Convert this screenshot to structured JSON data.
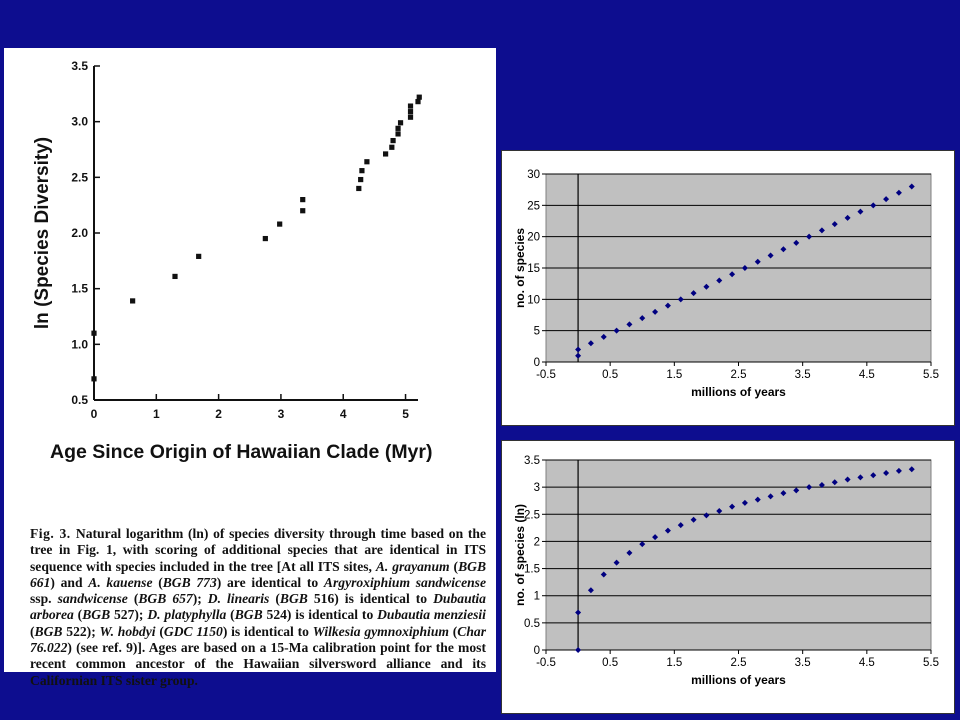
{
  "caption": {
    "fig_label": "Fig. 3.",
    "segments": [
      {
        "t": "Natural logarithm (ln) of species diversity through time based on the tree in Fig. 1, with scoring of additional species that are identical in ITS sequence with species included in the tree [At all ITS sites, ",
        "i": false
      },
      {
        "t": "A. grayanum",
        "i": true
      },
      {
        "t": " (",
        "i": false
      },
      {
        "t": "BGB 661",
        "i": true
      },
      {
        "t": ") and ",
        "i": false
      },
      {
        "t": "A. kauense",
        "i": true
      },
      {
        "t": " (",
        "i": false
      },
      {
        "t": "BGB 773",
        "i": true
      },
      {
        "t": ") are identical to ",
        "i": false
      },
      {
        "t": "Argyroxiphium sandwicense",
        "i": true
      },
      {
        "t": " ssp. ",
        "i": false
      },
      {
        "t": "sandwicense",
        "i": true
      },
      {
        "t": " (",
        "i": false
      },
      {
        "t": "BGB 657",
        "i": true
      },
      {
        "t": "); ",
        "i": false
      },
      {
        "t": "D. linearis",
        "i": true
      },
      {
        "t": " (",
        "i": false
      },
      {
        "t": "BGB",
        "i": true
      },
      {
        "t": " 516) is identical to ",
        "i": false
      },
      {
        "t": "Dubautia arborea",
        "i": true
      },
      {
        "t": " (",
        "i": false
      },
      {
        "t": "BGB",
        "i": true
      },
      {
        "t": " 527); ",
        "i": false
      },
      {
        "t": "D. platyphylla",
        "i": true
      },
      {
        "t": " (",
        "i": false
      },
      {
        "t": "BGB",
        "i": true
      },
      {
        "t": " 524) is identical to ",
        "i": false
      },
      {
        "t": "Dubautia menziesii",
        "i": true
      },
      {
        "t": " (",
        "i": false
      },
      {
        "t": "BGB",
        "i": true
      },
      {
        "t": " 522); ",
        "i": false
      },
      {
        "t": "W. hobdyi",
        "i": true
      },
      {
        "t": " (",
        "i": false
      },
      {
        "t": "GDC 1150",
        "i": true
      },
      {
        "t": ") is identical to ",
        "i": false
      },
      {
        "t": "Wilkesia gymnoxiphium",
        "i": true
      },
      {
        "t": " (",
        "i": false
      },
      {
        "t": "Char 76.022",
        "i": true
      },
      {
        "t": ") (see ref. 9)]. Ages are based on a 15-Ma calibration point for the most recent common ancestor of the Hawaiian silversword alliance and its Californian ITS sister group.",
        "i": false
      }
    ]
  },
  "chart_data": [
    {
      "type": "scatter",
      "title": "",
      "xlabel": "Age Since Origin of Hawaiian Clade (Myr)",
      "ylabel": "ln (Species Diversity)",
      "xlim": [
        0,
        5.2
      ],
      "ylim": [
        0.5,
        3.5
      ],
      "xticks": [
        "0",
        "1",
        "2",
        "3",
        "4",
        "5"
      ],
      "yticks": [
        "0.5",
        "1.0",
        "1.5",
        "2.0",
        "2.5",
        "3.0",
        "3.5"
      ],
      "grid": false,
      "marker_color": "#111111",
      "points": [
        [
          0.0,
          0.69
        ],
        [
          0.0,
          1.1
        ],
        [
          0.62,
          1.39
        ],
        [
          1.3,
          1.61
        ],
        [
          1.68,
          1.79
        ],
        [
          2.75,
          1.95
        ],
        [
          2.98,
          2.08
        ],
        [
          3.35,
          2.2
        ],
        [
          3.35,
          2.3
        ],
        [
          4.25,
          2.4
        ],
        [
          4.28,
          2.48
        ],
        [
          4.3,
          2.56
        ],
        [
          4.38,
          2.64
        ],
        [
          4.68,
          2.71
        ],
        [
          4.78,
          2.77
        ],
        [
          4.8,
          2.83
        ],
        [
          4.88,
          2.89
        ],
        [
          4.88,
          2.94
        ],
        [
          4.92,
          2.99
        ],
        [
          5.08,
          3.04
        ],
        [
          5.08,
          3.09
        ],
        [
          5.08,
          3.14
        ],
        [
          5.2,
          3.18
        ],
        [
          5.22,
          3.22
        ]
      ]
    },
    {
      "type": "scatter",
      "title": "",
      "xlabel": "millions of years",
      "ylabel": "no. of species",
      "xlim": [
        -0.5,
        5.5
      ],
      "ylim": [
        0,
        30
      ],
      "xticks": [
        "-0.5",
        "0.5",
        "1.5",
        "2.5",
        "3.5",
        "4.5",
        "5.5"
      ],
      "yticks": [
        "0",
        "5",
        "10",
        "15",
        "20",
        "25",
        "30"
      ],
      "grid": true,
      "plot_bg": "#c0c0c0",
      "marker_color": "#000080",
      "points": [
        [
          0.0,
          1
        ],
        [
          0.0,
          2
        ],
        [
          0.2,
          3
        ],
        [
          0.4,
          4
        ],
        [
          0.6,
          5
        ],
        [
          0.8,
          6
        ],
        [
          1.0,
          7
        ],
        [
          1.2,
          8
        ],
        [
          1.4,
          9
        ],
        [
          1.6,
          10
        ],
        [
          1.8,
          11
        ],
        [
          2.0,
          12
        ],
        [
          2.2,
          13
        ],
        [
          2.4,
          14
        ],
        [
          2.6,
          15
        ],
        [
          2.8,
          16
        ],
        [
          3.0,
          17
        ],
        [
          3.2,
          18
        ],
        [
          3.4,
          19
        ],
        [
          3.6,
          20
        ],
        [
          3.8,
          21
        ],
        [
          4.0,
          22
        ],
        [
          4.2,
          23
        ],
        [
          4.4,
          24
        ],
        [
          4.6,
          25
        ],
        [
          4.8,
          26
        ],
        [
          5.0,
          27
        ],
        [
          5.2,
          28
        ]
      ]
    },
    {
      "type": "scatter",
      "title": "",
      "xlabel": "millions of years",
      "ylabel": "no. of species (ln)",
      "xlim": [
        -0.5,
        5.5
      ],
      "ylim": [
        0,
        3.5
      ],
      "xticks": [
        "-0.5",
        "0.5",
        "1.5",
        "2.5",
        "3.5",
        "4.5",
        "5.5"
      ],
      "yticks": [
        "0",
        "0.5",
        "1",
        "1.5",
        "2",
        "2.5",
        "3",
        "3.5"
      ],
      "grid": true,
      "plot_bg": "#c0c0c0",
      "marker_color": "#000080",
      "points": [
        [
          0.0,
          0.0
        ],
        [
          0.0,
          0.69
        ],
        [
          0.2,
          1.1
        ],
        [
          0.4,
          1.39
        ],
        [
          0.6,
          1.61
        ],
        [
          0.8,
          1.79
        ],
        [
          1.0,
          1.95
        ],
        [
          1.2,
          2.08
        ],
        [
          1.4,
          2.2
        ],
        [
          1.6,
          2.3
        ],
        [
          1.8,
          2.4
        ],
        [
          2.0,
          2.48
        ],
        [
          2.2,
          2.56
        ],
        [
          2.4,
          2.64
        ],
        [
          2.6,
          2.71
        ],
        [
          2.8,
          2.77
        ],
        [
          3.0,
          2.83
        ],
        [
          3.2,
          2.89
        ],
        [
          3.4,
          2.94
        ],
        [
          3.6,
          3.0
        ],
        [
          3.8,
          3.04
        ],
        [
          4.0,
          3.09
        ],
        [
          4.2,
          3.14
        ],
        [
          4.4,
          3.18
        ],
        [
          4.6,
          3.22
        ],
        [
          4.8,
          3.26
        ],
        [
          5.0,
          3.3
        ],
        [
          5.2,
          3.33
        ]
      ]
    }
  ]
}
